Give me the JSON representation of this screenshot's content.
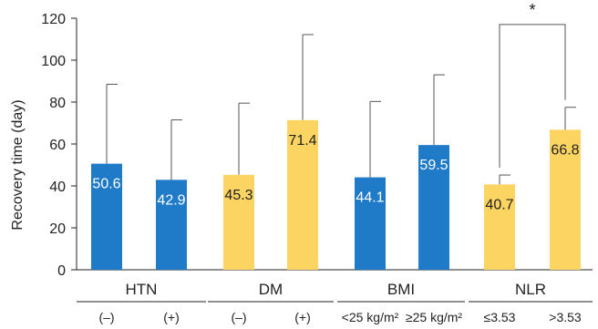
{
  "chart_data": {
    "type": "bar",
    "ylabel": "Recovery time (day)",
    "ylim": [
      0,
      120
    ],
    "yticks": [
      0,
      20,
      40,
      60,
      80,
      100,
      120
    ],
    "grid": false,
    "bars": [
      {
        "group": "HTN",
        "category": "(–)",
        "value": 50.6,
        "error": 37.9,
        "value_label": "50.6",
        "color": "#1f7bc8",
        "label_color": "#ffffff"
      },
      {
        "group": "HTN",
        "category": "(+)",
        "value": 42.9,
        "error": 28.6,
        "value_label": "42.9",
        "color": "#1f7bc8",
        "label_color": "#ffffff"
      },
      {
        "group": "DM",
        "category": "(–)",
        "value": 45.3,
        "error": 34.2,
        "value_label": "45.3",
        "color": "#fcd462",
        "label_color": "#222222"
      },
      {
        "group": "DM",
        "category": "(+)",
        "value": 71.4,
        "error": 40.8,
        "value_label": "71.4",
        "color": "#fcd462",
        "label_color": "#222222"
      },
      {
        "group": "BMI",
        "category": "<25 kg/m²",
        "value": 44.1,
        "error": 36.2,
        "value_label": "44.1",
        "color": "#1f7bc8",
        "label_color": "#ffffff"
      },
      {
        "group": "BMI",
        "category": "≥25 kg/m²",
        "value": 59.5,
        "error": 33.5,
        "value_label": "59.5",
        "color": "#1f7bc8",
        "label_color": "#ffffff"
      },
      {
        "group": "NLR",
        "category": "≤3.53",
        "value": 40.7,
        "error": 4.5,
        "value_label": "40.7",
        "color": "#fcd462",
        "label_color": "#222222"
      },
      {
        "group": "NLR",
        "category": ">3.53",
        "value": 66.8,
        "error": 10.7,
        "value_label": "66.8",
        "color": "#fcd462",
        "label_color": "#222222"
      }
    ],
    "groups": [
      "HTN",
      "DM",
      "BMI",
      "NLR"
    ],
    "significance": {
      "group": "NLR",
      "text": "*",
      "bracket_y": 117
    }
  }
}
